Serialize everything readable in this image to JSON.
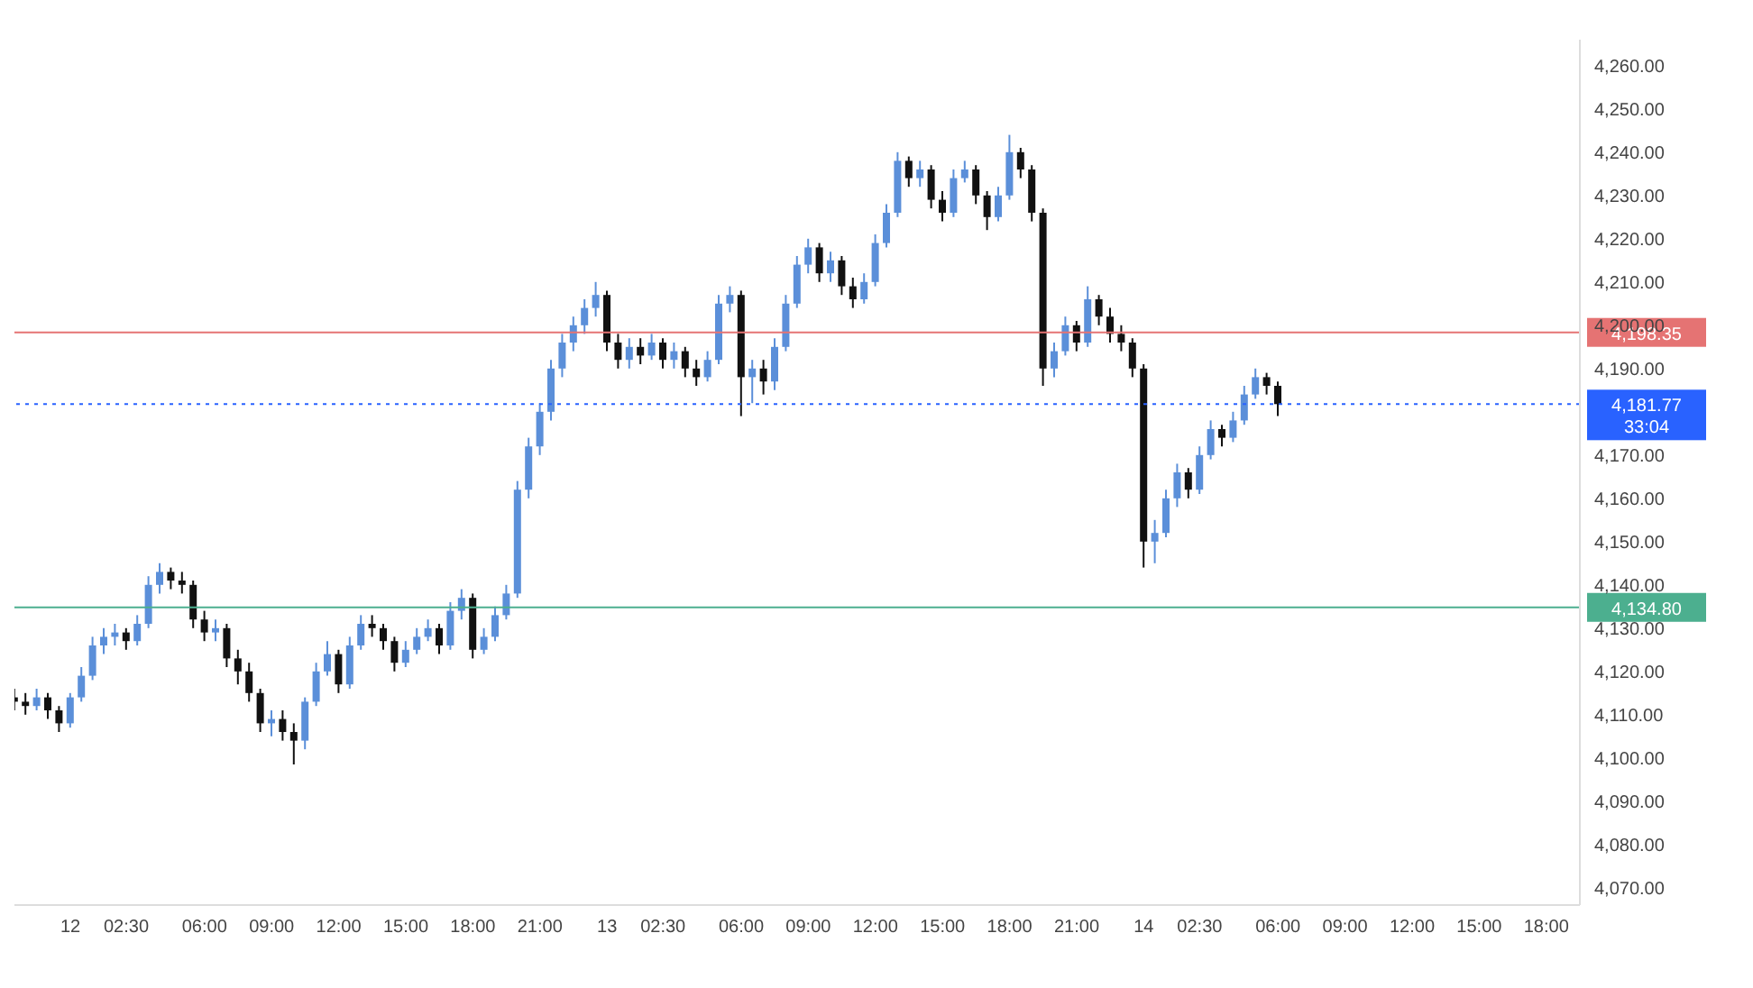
{
  "chart_data": {
    "type": "candlestick",
    "x": [
      "--11-11T21:30",
      "--11-11T22:00",
      "--11-11T22:30",
      "--11-11T23:00",
      "--11-11T23:30",
      "--11-12T00:00",
      "--11-12T00:30",
      "--11-12T01:00",
      "--11-12T01:30",
      "--11-12T02:00",
      "--11-12T02:30",
      "--11-12T03:00",
      "--11-12T03:30",
      "--11-12T04:00",
      "--11-12T04:30",
      "--11-12T05:00",
      "--11-12T05:30",
      "--11-12T06:00",
      "--11-12T06:30",
      "--11-12T07:00",
      "--11-12T07:30",
      "--11-12T08:00",
      "--11-12T08:30",
      "--11-12T09:00",
      "--11-12T09:30",
      "--11-12T10:00",
      "--11-12T10:30",
      "--11-12T11:00",
      "--11-12T11:30",
      "--11-12T12:00",
      "--11-12T12:30",
      "--11-12T13:00",
      "--11-12T13:30",
      "--11-12T14:00",
      "--11-12T14:30",
      "--11-12T15:00",
      "--11-12T15:30",
      "--11-12T16:00",
      "--11-12T16:30",
      "--11-12T17:00",
      "--11-12T17:30",
      "--11-12T18:00",
      "--11-12T18:30",
      "--11-12T19:00",
      "--11-12T19:30",
      "--11-12T20:00",
      "--11-12T20:30",
      "--11-12T21:00",
      "--11-12T21:30",
      "--11-12T22:00",
      "--11-12T22:30",
      "--11-12T23:00",
      "--11-12T23:30",
      "--11-13T00:00",
      "--11-13T00:30",
      "--11-13T01:00",
      "--11-13T01:30",
      "--11-13T02:00",
      "--11-13T02:30",
      "--11-13T03:00",
      "--11-13T03:30",
      "--11-13T04:00",
      "--11-13T04:30",
      "--11-13T05:00",
      "--11-13T05:30",
      "--11-13T06:00",
      "--11-13T06:30",
      "--11-13T07:00",
      "--11-13T07:30",
      "--11-13T08:00",
      "--11-13T08:30",
      "--11-13T09:00",
      "--11-13T09:30",
      "--11-13T10:00",
      "--11-13T10:30",
      "--11-13T11:00",
      "--11-13T11:30",
      "--11-13T12:00",
      "--11-13T12:30",
      "--11-13T13:00",
      "--11-13T13:30",
      "--11-13T14:00",
      "--11-13T14:30",
      "--11-13T15:00",
      "--11-13T15:30",
      "--11-13T16:00",
      "--11-13T16:30",
      "--11-13T17:00",
      "--11-13T17:30",
      "--11-13T18:00",
      "--11-13T18:30",
      "--11-13T19:00",
      "--11-13T19:30",
      "--11-13T20:00",
      "--11-13T20:30",
      "--11-13T21:00",
      "--11-13T21:30",
      "--11-13T22:00",
      "--11-13T22:30",
      "--11-13T23:00",
      "--11-13T23:30",
      "--11-14T00:00",
      "--11-14T00:30",
      "--11-14T01:00",
      "--11-14T01:30",
      "--11-14T02:00",
      "--11-14T02:30",
      "--11-14T03:00",
      "--11-14T03:30",
      "--11-14T04:00",
      "--11-14T04:30",
      "--11-14T05:00",
      "--11-14T05:30",
      "--11-14T06:00"
    ],
    "ohlc": [
      [
        4114,
        4116,
        4111,
        4113
      ],
      [
        4113,
        4115,
        4110,
        4112
      ],
      [
        4112,
        4116,
        4111,
        4114
      ],
      [
        4114,
        4115,
        4109,
        4111
      ],
      [
        4111,
        4112,
        4106,
        4108
      ],
      [
        4108,
        4115,
        4107,
        4114
      ],
      [
        4114,
        4121,
        4113,
        4119
      ],
      [
        4119,
        4128,
        4118,
        4126
      ],
      [
        4126,
        4130,
        4124,
        4128
      ],
      [
        4128,
        4131,
        4126,
        4129
      ],
      [
        4129,
        4130,
        4125,
        4127
      ],
      [
        4127,
        4133,
        4126,
        4131
      ],
      [
        4131,
        4142,
        4130,
        4140
      ],
      [
        4140,
        4145,
        4138,
        4143
      ],
      [
        4143,
        4144,
        4139,
        4141
      ],
      [
        4141,
        4143,
        4138,
        4140
      ],
      [
        4140,
        4141,
        4130,
        4132
      ],
      [
        4132,
        4134,
        4127,
        4129
      ],
      [
        4129,
        4132,
        4127,
        4130
      ],
      [
        4130,
        4131,
        4121,
        4123
      ],
      [
        4123,
        4125,
        4117,
        4120
      ],
      [
        4120,
        4122,
        4113,
        4115
      ],
      [
        4115,
        4116,
        4106,
        4108
      ],
      [
        4108,
        4111,
        4105,
        4109
      ],
      [
        4109,
        4111,
        4104,
        4106
      ],
      [
        4106,
        4108,
        4098.5,
        4104
      ],
      [
        4104,
        4114,
        4102,
        4113
      ],
      [
        4113,
        4122,
        4112,
        4120
      ],
      [
        4120,
        4127,
        4119,
        4124
      ],
      [
        4124,
        4125,
        4115,
        4117
      ],
      [
        4117,
        4128,
        4116,
        4126
      ],
      [
        4126,
        4133,
        4125,
        4131
      ],
      [
        4131,
        4133,
        4128,
        4130
      ],
      [
        4130,
        4131,
        4125,
        4127
      ],
      [
        4127,
        4128,
        4120,
        4122
      ],
      [
        4122,
        4127,
        4121,
        4125
      ],
      [
        4125,
        4130,
        4124,
        4128
      ],
      [
        4128,
        4132,
        4127,
        4130
      ],
      [
        4130,
        4131,
        4124,
        4126
      ],
      [
        4126,
        4136,
        4125,
        4134
      ],
      [
        4134,
        4139,
        4132,
        4137
      ],
      [
        4137,
        4138,
        4123,
        4125
      ],
      [
        4125,
        4130,
        4124,
        4128
      ],
      [
        4128,
        4135,
        4127,
        4133
      ],
      [
        4133,
        4140,
        4132,
        4138
      ],
      [
        4138,
        4164,
        4137,
        4162
      ],
      [
        4162,
        4174,
        4160,
        4172
      ],
      [
        4172,
        4182,
        4170,
        4180
      ],
      [
        4180,
        4192,
        4178,
        4190
      ],
      [
        4190,
        4198,
        4188,
        4196
      ],
      [
        4196,
        4202,
        4194,
        4200
      ],
      [
        4200,
        4206,
        4198,
        4204
      ],
      [
        4204,
        4210,
        4202,
        4207
      ],
      [
        4207,
        4208,
        4194,
        4196
      ],
      [
        4196,
        4198,
        4190,
        4192
      ],
      [
        4192,
        4197,
        4190,
        4195
      ],
      [
        4195,
        4197,
        4191,
        4193
      ],
      [
        4193,
        4198,
        4192,
        4196
      ],
      [
        4196,
        4197,
        4190,
        4192
      ],
      [
        4192,
        4196,
        4190,
        4194
      ],
      [
        4194,
        4195,
        4188,
        4190
      ],
      [
        4190,
        4192,
        4186,
        4188
      ],
      [
        4188,
        4194,
        4187,
        4192
      ],
      [
        4192,
        4207,
        4191,
        4205
      ],
      [
        4205,
        4209,
        4203,
        4207
      ],
      [
        4207,
        4208,
        4179,
        4188
      ],
      [
        4188,
        4192,
        4182,
        4190
      ],
      [
        4190,
        4192,
        4184,
        4187
      ],
      [
        4187,
        4197,
        4185,
        4195
      ],
      [
        4195,
        4207,
        4194,
        4205
      ],
      [
        4205,
        4216,
        4204,
        4214
      ],
      [
        4214,
        4220,
        4212,
        4218
      ],
      [
        4218,
        4219,
        4210,
        4212
      ],
      [
        4212,
        4217,
        4210,
        4215
      ],
      [
        4215,
        4216,
        4207,
        4209
      ],
      [
        4209,
        4211,
        4204,
        4206
      ],
      [
        4206,
        4212,
        4205,
        4210
      ],
      [
        4210,
        4221,
        4209,
        4219
      ],
      [
        4219,
        4228,
        4218,
        4226
      ],
      [
        4226,
        4240,
        4225,
        4238
      ],
      [
        4238,
        4239,
        4232,
        4234
      ],
      [
        4234,
        4238,
        4232,
        4236
      ],
      [
        4236,
        4237,
        4227,
        4229
      ],
      [
        4229,
        4231,
        4224,
        4226
      ],
      [
        4226,
        4236,
        4225,
        4234
      ],
      [
        4234,
        4238,
        4233,
        4236
      ],
      [
        4236,
        4237,
        4228,
        4230
      ],
      [
        4230,
        4231,
        4222,
        4225
      ],
      [
        4225,
        4232,
        4224,
        4230
      ],
      [
        4230,
        4244,
        4229,
        4240
      ],
      [
        4240,
        4241,
        4234,
        4236
      ],
      [
        4236,
        4237,
        4224,
        4226
      ],
      [
        4226,
        4227,
        4186,
        4190
      ],
      [
        4190,
        4196,
        4188,
        4194
      ],
      [
        4194,
        4202,
        4193,
        4200
      ],
      [
        4200,
        4201,
        4194,
        4196
      ],
      [
        4196,
        4209,
        4195,
        4206
      ],
      [
        4206,
        4207,
        4200,
        4202
      ],
      [
        4202,
        4204,
        4196,
        4198
      ],
      [
        4198,
        4200,
        4194,
        4196
      ],
      [
        4196,
        4197,
        4188,
        4190
      ],
      [
        4190,
        4191,
        4144,
        4150
      ],
      [
        4150,
        4155,
        4145,
        4152
      ],
      [
        4152,
        4162,
        4151,
        4160
      ],
      [
        4160,
        4168,
        4158,
        4166
      ],
      [
        4166,
        4167,
        4160,
        4162
      ],
      [
        4162,
        4172,
        4161,
        4170
      ],
      [
        4170,
        4178,
        4169,
        4176
      ],
      [
        4176,
        4177,
        4172,
        4174
      ],
      [
        4174,
        4180,
        4173,
        4178
      ],
      [
        4178,
        4186,
        4177,
        4184
      ],
      [
        4184,
        4190,
        4183,
        4188
      ],
      [
        4188,
        4189,
        4184,
        4186
      ],
      [
        4186,
        4187,
        4179,
        4181.77
      ]
    ],
    "xlim": [
      "--11-11T21:30",
      "--11-14T19:30"
    ],
    "xticks": [
      {
        "value": "--11-12T00:00",
        "label": "12"
      },
      {
        "value": "--11-12T02:30",
        "label": "02:30"
      },
      {
        "value": "--11-12T06:00",
        "label": "06:00"
      },
      {
        "value": "--11-12T09:00",
        "label": "09:00"
      },
      {
        "value": "--11-12T12:00",
        "label": "12:00"
      },
      {
        "value": "--11-12T15:00",
        "label": "15:00"
      },
      {
        "value": "--11-12T18:00",
        "label": "18:00"
      },
      {
        "value": "--11-12T21:00",
        "label": "21:00"
      },
      {
        "value": "--11-13T00:00",
        "label": "13"
      },
      {
        "value": "--11-13T02:30",
        "label": "02:30"
      },
      {
        "value": "--11-13T06:00",
        "label": "06:00"
      },
      {
        "value": "--11-13T09:00",
        "label": "09:00"
      },
      {
        "value": "--11-13T12:00",
        "label": "12:00"
      },
      {
        "value": "--11-13T15:00",
        "label": "15:00"
      },
      {
        "value": "--11-13T18:00",
        "label": "18:00"
      },
      {
        "value": "--11-13T21:00",
        "label": "21:00"
      },
      {
        "value": "--11-14T00:00",
        "label": "14"
      },
      {
        "value": "--11-14T02:30",
        "label": "02:30"
      },
      {
        "value": "--11-14T06:00",
        "label": "06:00"
      },
      {
        "value": "--11-14T09:00",
        "label": "09:00"
      },
      {
        "value": "--11-14T12:00",
        "label": "12:00"
      },
      {
        "value": "--11-14T15:00",
        "label": "15:00"
      },
      {
        "value": "--11-14T18:00",
        "label": "18:00"
      }
    ],
    "ylim": [
      4066,
      4266
    ],
    "yticks": [
      {
        "value": 4070,
        "label": "4,070.00"
      },
      {
        "value": 4080,
        "label": "4,080.00"
      },
      {
        "value": 4090,
        "label": "4,090.00"
      },
      {
        "value": 4100,
        "label": "4,100.00"
      },
      {
        "value": 4110,
        "label": "4,110.00"
      },
      {
        "value": 4120,
        "label": "4,120.00"
      },
      {
        "value": 4130,
        "label": "4,130.00"
      },
      {
        "value": 4140,
        "label": "4,140.00"
      },
      {
        "value": 4150,
        "label": "4,150.00"
      },
      {
        "value": 4160,
        "label": "4,160.00"
      },
      {
        "value": 4170,
        "label": "4,170.00"
      },
      {
        "value": 4190,
        "label": "4,190.00"
      },
      {
        "value": 4200,
        "label": "4,200.00"
      },
      {
        "value": 4210,
        "label": "4,210.00"
      },
      {
        "value": 4220,
        "label": "4,220.00"
      },
      {
        "value": 4230,
        "label": "4,230.00"
      },
      {
        "value": 4240,
        "label": "4,240.00"
      },
      {
        "value": 4250,
        "label": "4,250.00"
      },
      {
        "value": 4260,
        "label": "4,260.00"
      }
    ],
    "ref_lines": [
      {
        "axis": "y",
        "value": 4181.77,
        "label": "4,181.77",
        "color": "#2962ff",
        "line_style": "dotted"
      },
      {
        "axis": "y",
        "value": 4198.35,
        "label": "4,198.35",
        "color": "#e57373",
        "line_style": "solid"
      },
      {
        "axis": "y",
        "value": 4134.8,
        "label": "4,134.80",
        "color": "#4caf8f",
        "line_style": "solid"
      }
    ],
    "annotations": [
      "33:04"
    ]
  }
}
